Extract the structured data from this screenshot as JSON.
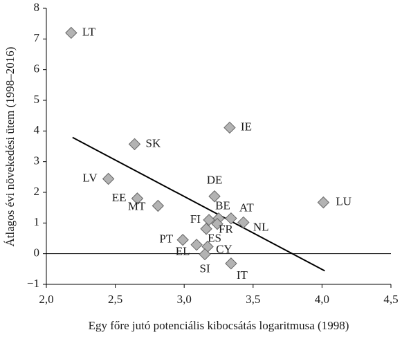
{
  "chart_data": {
    "type": "scatter",
    "x_label": "Egy főre jutó potenciális kibocsátás logaritmusa (1998)",
    "y_label": "Átlagos évi növekedési ütem (1998–2016)",
    "series": [
      {
        "color": "#b3b3b3",
        "labels": [
          "LT",
          "SK",
          "LV",
          "EE",
          "MT",
          "DE",
          "IE",
          "LU",
          "FI",
          "BE",
          "AT",
          "FR",
          "NL",
          "ES",
          "PT",
          "EL",
          "CY",
          "SI",
          "IT"
        ],
        "x": [
          2.18,
          2.64,
          2.45,
          2.66,
          2.81,
          3.22,
          3.33,
          4.01,
          3.18,
          3.25,
          3.34,
          3.24,
          3.43,
          3.16,
          2.99,
          3.09,
          3.17,
          3.15,
          3.34
        ],
        "values": [
          7.2,
          3.57,
          2.44,
          1.8,
          1.56,
          1.87,
          4.11,
          1.67,
          1.1,
          1.15,
          1.15,
          0.97,
          1.02,
          0.81,
          0.45,
          0.29,
          0.23,
          -0.02,
          -0.32
        ]
      }
    ],
    "trendline": {
      "color": "#000000",
      "x": [
        2.19,
        4.02
      ],
      "values": [
        3.79,
        -0.56
      ]
    },
    "xlim": [
      2.0,
      4.5
    ],
    "xticks": [
      {
        "value": 2.0,
        "label": "2,0"
      },
      {
        "value": 2.5,
        "label": "2,5"
      },
      {
        "value": 3.0,
        "label": "3,0"
      },
      {
        "value": 3.5,
        "label": "3,5"
      },
      {
        "value": 4.0,
        "label": "4,0"
      },
      {
        "value": 4.5,
        "label": "4,5"
      }
    ],
    "ylim": [
      -1,
      8
    ],
    "yticks": [
      {
        "value": -1,
        "label": "−1"
      },
      0,
      1,
      2,
      3,
      4,
      5,
      6,
      7,
      8
    ],
    "zero_line": true
  }
}
